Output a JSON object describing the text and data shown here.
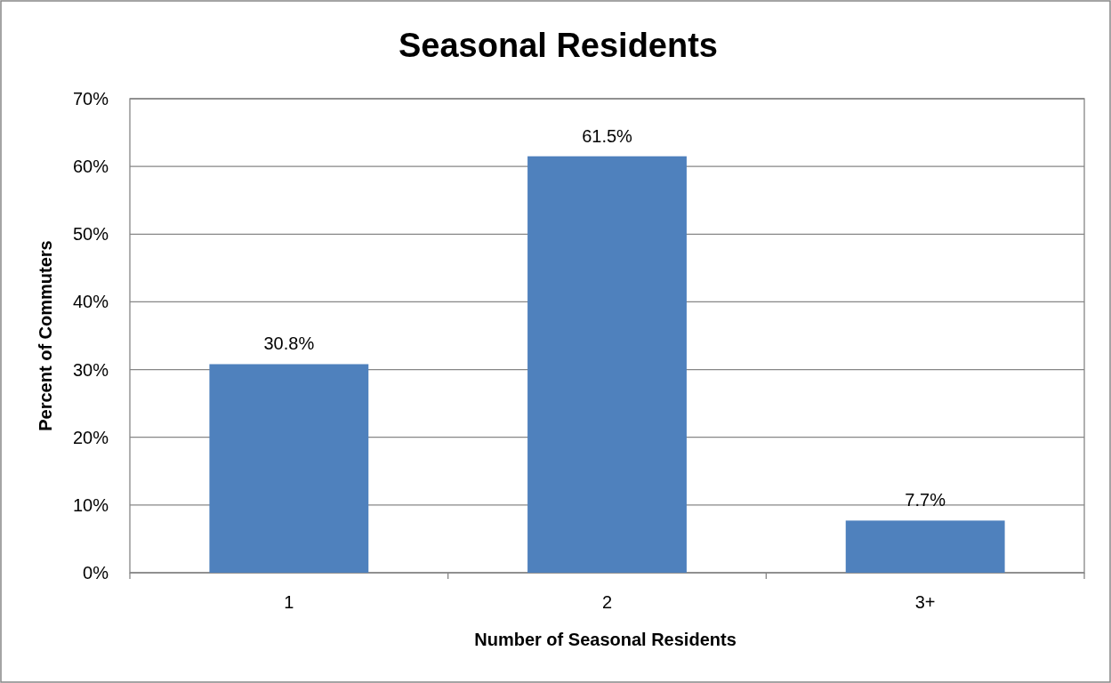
{
  "chart_data": {
    "type": "bar",
    "title": "Seasonal Residents",
    "xlabel": "Number of Seasonal Residents",
    "ylabel": "Percent of Commuters",
    "categories": [
      "1",
      "2",
      "3+"
    ],
    "values": [
      30.8,
      61.5,
      7.7
    ],
    "value_labels": [
      "30.8%",
      "61.5%",
      "7.7%"
    ],
    "color": "#4f81bd",
    "ylim": [
      0,
      70
    ],
    "yticks": [
      {
        "value": 0,
        "label": "0%"
      },
      {
        "value": 10,
        "label": "10%"
      },
      {
        "value": 20,
        "label": "20%"
      },
      {
        "value": 30,
        "label": "30%"
      },
      {
        "value": 40,
        "label": "40%"
      },
      {
        "value": 50,
        "label": "50%"
      },
      {
        "value": 60,
        "label": "60%"
      },
      {
        "value": 70,
        "label": "70%"
      }
    ],
    "grid": "y"
  }
}
